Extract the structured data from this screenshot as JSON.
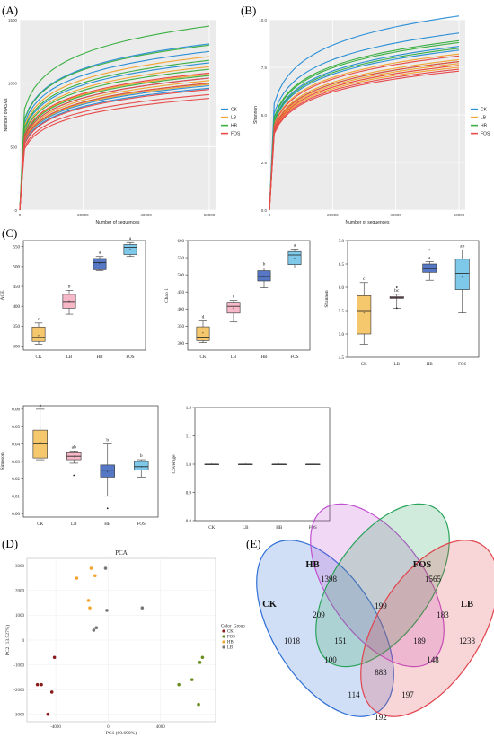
{
  "panels": {
    "A": "(A)",
    "B": "(B)",
    "C": "(C)",
    "D": "(D)",
    "E": "(E)"
  },
  "colors": {
    "CK": "#2a8fd6",
    "LB": "#f2a531",
    "HB": "#3cb043",
    "FOS": "#e84a4a",
    "box_CK": "#f6c86e",
    "box_LB": "#f6b8c7",
    "box_HB": "#5577c4",
    "box_FOS": "#7ec8ea",
    "pca_CK": "#8b1a1a",
    "pca_FOS": "#6b8e23",
    "pca_HB": "#f2a531",
    "pca_LB": "#777777",
    "venn_CK": "#2f6fd6",
    "venn_HB": "#c050d0",
    "venn_FOS": "#28a35a",
    "venn_LB": "#e0454e"
  },
  "chart_data": [
    {
      "id": "A",
      "type": "line",
      "xlabel": "Number of sequences",
      "ylabel": "Number of ASVs",
      "xlim": [
        0,
        62000
      ],
      "ylim": [
        0,
        1500
      ],
      "xticks": [
        0,
        20000,
        40000,
        60000
      ],
      "yticks": [
        0,
        500,
        1000,
        1500
      ],
      "legend": [
        "CK",
        "LB",
        "HB",
        "FOS"
      ],
      "legend_position": "right",
      "grid": true,
      "series": [
        {
          "name": "CK",
          "finals": [
            1310,
            1250,
            1160,
            1040,
            980,
            960
          ]
        },
        {
          "name": "LB",
          "finals": [
            1210,
            1130,
            1070,
            1020,
            990
          ]
        },
        {
          "name": "HB",
          "finals": [
            1450,
            1300,
            1180,
            1110,
            1060,
            1000
          ]
        },
        {
          "name": "FOS",
          "finals": [
            1080,
            1040,
            1000,
            950,
            910,
            880
          ]
        }
      ]
    },
    {
      "id": "B",
      "type": "line",
      "xlabel": "Number of sequences",
      "ylabel": "Shannon",
      "xlim": [
        0,
        62000
      ],
      "ylim": [
        0,
        10
      ],
      "xticks": [
        0,
        20000,
        40000,
        60000
      ],
      "yticks": [
        0.0,
        2.5,
        5.0,
        7.5,
        10.0
      ],
      "ytick_labels": [
        "0.0",
        "2.5",
        "5.0",
        "7.5",
        "10.0"
      ],
      "legend": [
        "CK",
        "LB",
        "HB",
        "FOS"
      ],
      "legend_position": "right",
      "grid": true,
      "series": [
        {
          "name": "CK",
          "finals": [
            10.2,
            9.3,
            8.6,
            8.4
          ]
        },
        {
          "name": "LB",
          "finals": [
            8.2,
            7.9,
            7.7,
            7.6,
            7.5
          ]
        },
        {
          "name": "HB",
          "finals": [
            8.9,
            8.8,
            8.5,
            7.8
          ]
        },
        {
          "name": "FOS",
          "finals": [
            8.1,
            7.8,
            7.6,
            7.4,
            7.3
          ]
        }
      ]
    },
    {
      "id": "C-ACE",
      "type": "box",
      "ylabel": "ACE",
      "categories": [
        "CK",
        "LB",
        "HB",
        "FOS"
      ],
      "ylim": [
        290,
        565
      ],
      "yticks": [
        300,
        350,
        400,
        450,
        500,
        550
      ],
      "boxes": [
        {
          "q1": 312,
          "med": 322,
          "q3": 348,
          "min": 305,
          "max": 358,
          "mean": 326,
          "letter": "c"
        },
        {
          "q1": 395,
          "med": 412,
          "q3": 430,
          "min": 380,
          "max": 440,
          "mean": 413,
          "letter": "b"
        },
        {
          "q1": 492,
          "med": 510,
          "q3": 520,
          "min": 490,
          "max": 525,
          "mean": 508,
          "letter": "a"
        },
        {
          "q1": 530,
          "med": 548,
          "q3": 555,
          "min": 525,
          "max": 560,
          "mean": 543,
          "letter": "a"
        }
      ]
    },
    {
      "id": "C-Chao1",
      "type": "box",
      "ylabel": "Chao 1",
      "categories": [
        "CK",
        "LB",
        "HB",
        "FOS"
      ],
      "ylim": [
        280,
        600
      ],
      "yticks": [
        300,
        350,
        400,
        450,
        500,
        550,
        600
      ],
      "boxes": [
        {
          "q1": 308,
          "med": 318,
          "q3": 348,
          "min": 302,
          "max": 365,
          "mean": 330,
          "letter": "d"
        },
        {
          "q1": 388,
          "med": 408,
          "q3": 420,
          "min": 362,
          "max": 425,
          "mean": 402,
          "letter": "c"
        },
        {
          "q1": 482,
          "med": 495,
          "q3": 512,
          "min": 462,
          "max": 520,
          "mean": 495,
          "letter": "b"
        },
        {
          "q1": 530,
          "med": 558,
          "q3": 568,
          "min": 520,
          "max": 575,
          "mean": 548,
          "letter": "a"
        }
      ]
    },
    {
      "id": "C-Shannon",
      "type": "box",
      "ylabel": "Shannon",
      "categories": [
        "CK",
        "LB",
        "HB",
        "FOS"
      ],
      "ylim": [
        4.5,
        7.0
      ],
      "yticks": [
        4.5,
        5.0,
        5.5,
        6.0,
        6.5,
        7.0
      ],
      "ytick_labels": [
        "4.5",
        "5.0",
        "5.5",
        "6.0",
        "6.5",
        "7.0"
      ],
      "boxes": [
        {
          "q1": 5.0,
          "med": 5.5,
          "q3": 5.82,
          "min": 4.78,
          "max": 6.1,
          "mean": 5.45,
          "letter": "c"
        },
        {
          "q1": 5.76,
          "med": 5.78,
          "q3": 5.8,
          "min": 5.55,
          "max": 5.85,
          "mean": 5.78,
          "letter": "bc",
          "outliers": [
            6.0,
            5.55
          ]
        },
        {
          "q1": 6.32,
          "med": 6.4,
          "q3": 6.5,
          "min": 6.15,
          "max": 6.55,
          "mean": 6.42,
          "letter": "a",
          "outliers": [
            6.8
          ]
        },
        {
          "q1": 5.95,
          "med": 6.3,
          "q3": 6.6,
          "min": 5.45,
          "max": 6.8,
          "mean": 6.22,
          "letter": "ab"
        }
      ]
    },
    {
      "id": "C-Simpson",
      "type": "box",
      "ylabel": "Simpson",
      "categories": [
        "CK",
        "LB",
        "HB",
        "FOS"
      ],
      "ylim": [
        -0.002,
        0.062
      ],
      "yticks": [
        0.0,
        0.01,
        0.02,
        0.03,
        0.04,
        0.05,
        0.06
      ],
      "ytick_labels": [
        "0.00",
        "0.01",
        "0.02",
        "0.03",
        "0.04",
        "0.05",
        "0.06"
      ],
      "boxes": [
        {
          "q1": 0.032,
          "med": 0.04,
          "q3": 0.048,
          "min": 0.031,
          "max": 0.06,
          "mean": 0.041,
          "letter": "a"
        },
        {
          "q1": 0.031,
          "med": 0.033,
          "q3": 0.035,
          "min": 0.029,
          "max": 0.036,
          "mean": 0.033,
          "letter": "ab",
          "outliers": [
            0.022
          ]
        },
        {
          "q1": 0.021,
          "med": 0.025,
          "q3": 0.028,
          "min": 0.01,
          "max": 0.04,
          "mean": 0.024,
          "letter": "b",
          "outliers": [
            0.003
          ]
        },
        {
          "q1": 0.025,
          "med": 0.027,
          "q3": 0.03,
          "min": 0.021,
          "max": 0.031,
          "mean": 0.027,
          "letter": "b"
        }
      ]
    },
    {
      "id": "C-Coverage",
      "type": "box",
      "ylabel": "Coverage",
      "categories": [
        "CK",
        "LB",
        "HB",
        "FOS"
      ],
      "ylim": [
        0.8,
        1.2
      ],
      "yticks": [
        0.8,
        0.9,
        1.0,
        1.1,
        1.2
      ],
      "ytick_labels": [
        "0.8",
        "0.9",
        "1.0",
        "1.1",
        "1.2"
      ],
      "boxes": [
        {
          "q1": 1.0,
          "med": 1.0,
          "q3": 1.0,
          "min": 1.0,
          "max": 1.0,
          "mean": 1.0,
          "letter": ""
        },
        {
          "q1": 1.0,
          "med": 1.0,
          "q3": 1.0,
          "min": 1.0,
          "max": 1.0,
          "mean": 1.0,
          "letter": ""
        },
        {
          "q1": 1.0,
          "med": 1.0,
          "q3": 1.0,
          "min": 1.0,
          "max": 1.0,
          "mean": 1.0,
          "letter": ""
        },
        {
          "q1": 1.0,
          "med": 1.0,
          "q3": 1.0,
          "min": 1.0,
          "max": 1.0,
          "mean": 1.0,
          "letter": ""
        }
      ]
    },
    {
      "id": "D",
      "type": "scatter",
      "title": "PCA",
      "xlabel": "PC1 (80.690%)",
      "ylabel": "PC2 (13.527%)",
      "xlim": [
        -6200,
        8200
      ],
      "ylim": [
        -3300,
        3300
      ],
      "xticks": [
        -4000,
        0,
        4000
      ],
      "xtick_labels": [
        "-4000",
        "0",
        "4000"
      ],
      "yticks": [
        -3000,
        -2000,
        -1000,
        0,
        1000,
        2000,
        3000
      ],
      "ytick_labels": [
        "-3000",
        "-2000",
        "-1000",
        "0",
        "1000",
        "2000",
        "3000"
      ],
      "legend_title": "Color_Group",
      "legend": [
        "CK",
        "FOS",
        "HB",
        "LB"
      ],
      "legend_position": "right",
      "series": [
        {
          "name": "CK",
          "points": [
            [
              -4100,
              -700
            ],
            [
              -5400,
              -1800
            ],
            [
              -5100,
              -1800
            ],
            [
              -4300,
              -2100
            ],
            [
              -4600,
              -3000
            ]
          ]
        },
        {
          "name": "FOS",
          "points": [
            [
              7200,
              -700
            ],
            [
              7000,
              -900
            ],
            [
              6400,
              -1600
            ],
            [
              5400,
              -1800
            ],
            [
              6900,
              -2600
            ]
          ]
        },
        {
          "name": "HB",
          "points": [
            [
              -1300,
              2900
            ],
            [
              -2400,
              2500
            ],
            [
              -1000,
              2600
            ],
            [
              -1500,
              1600
            ],
            [
              -1400,
              1300
            ]
          ]
        },
        {
          "name": "LB",
          "points": [
            [
              -200,
              2900
            ],
            [
              2600,
              1300
            ],
            [
              -100,
              1200
            ],
            [
              -900,
              500
            ],
            [
              -1100,
              400
            ]
          ]
        }
      ]
    },
    {
      "id": "E",
      "type": "venn",
      "sets": [
        "CK",
        "HB",
        "FOS",
        "LB"
      ],
      "regions": [
        {
          "key": "CK",
          "value": 1018
        },
        {
          "key": "HB",
          "value": 1398
        },
        {
          "key": "FOS",
          "value": 1565
        },
        {
          "key": "LB",
          "value": 1238
        },
        {
          "key": "CK_HB",
          "value": 209
        },
        {
          "key": "HB_FOS",
          "value": 199
        },
        {
          "key": "FOS_LB",
          "value": 183
        },
        {
          "key": "CK_LB",
          "value": 192
        },
        {
          "key": "CK_FOS",
          "value": 100
        },
        {
          "key": "HB_LB",
          "value": 148
        },
        {
          "key": "CK_HB_FOS",
          "value": 151
        },
        {
          "key": "HB_FOS_LB",
          "value": 189
        },
        {
          "key": "CK_FOS_LB",
          "value": 114
        },
        {
          "key": "CK_HB_LB",
          "value": 197
        },
        {
          "key": "ALL",
          "value": 883
        }
      ]
    }
  ]
}
